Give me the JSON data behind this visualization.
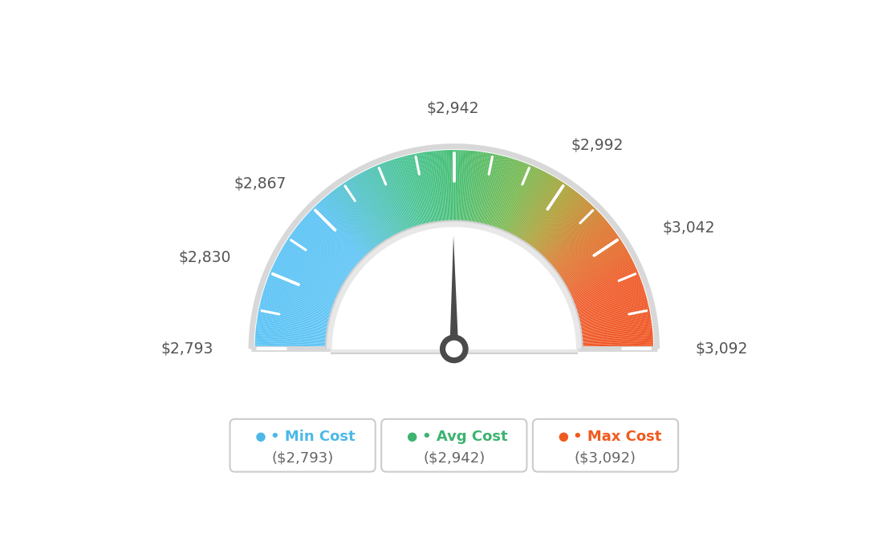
{
  "min_val": 2793,
  "avg_val": 2942,
  "max_val": 3092,
  "tick_labels": [
    "$2,793",
    "$2,830",
    "$2,867",
    "$2,942",
    "$2,992",
    "$3,042",
    "$3,092"
  ],
  "tick_values": [
    2793,
    2830,
    2867,
    2942,
    2992,
    3042,
    3092
  ],
  "legend_min_label": "Min Cost",
  "legend_avg_label": "Avg Cost",
  "legend_max_label": "Max Cost",
  "legend_min_value": "($2,793)",
  "legend_avg_value": "($2,942)",
  "legend_max_value": "($3,092)",
  "legend_min_color": "#4db8e8",
  "legend_avg_color": "#3cb371",
  "legend_max_color": "#f05a1e",
  "background_color": "#ffffff",
  "needle_value": 2942,
  "color_stops": [
    [
      0.0,
      [
        91,
        195,
        245
      ]
    ],
    [
      0.25,
      [
        91,
        195,
        245
      ]
    ],
    [
      0.42,
      [
        72,
        195,
        145
      ]
    ],
    [
      0.5,
      [
        68,
        190,
        115
      ]
    ],
    [
      0.62,
      [
        120,
        185,
        80
      ]
    ],
    [
      0.7,
      [
        175,
        160,
        55
      ]
    ],
    [
      0.78,
      [
        220,
        120,
        45
      ]
    ],
    [
      0.88,
      [
        240,
        90,
        40
      ]
    ],
    [
      1.0,
      [
        240,
        85,
        35
      ]
    ]
  ]
}
